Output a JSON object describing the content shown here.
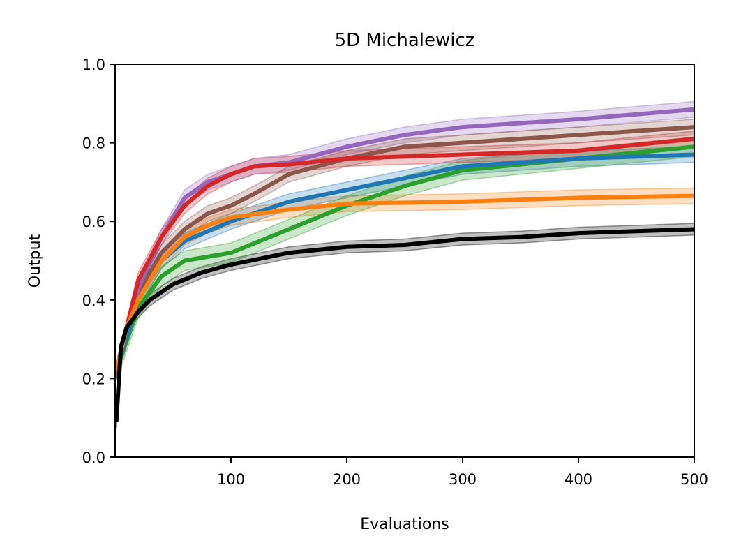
{
  "chart_data": {
    "type": "line",
    "title": "5D Michalewicz",
    "xlabel": "Evaluations",
    "ylabel": "Output",
    "xlim": [
      0,
      500
    ],
    "ylim": [
      0.0,
      1.0
    ],
    "xticks": [
      100,
      200,
      300,
      400,
      500
    ],
    "xtick_labels": [
      "100",
      "200",
      "300",
      "400",
      "500"
    ],
    "yticks": [
      0.0,
      0.2,
      0.4,
      0.6,
      0.8,
      1.0
    ],
    "ytick_labels": [
      "0.0",
      "0.2",
      "0.4",
      "0.6",
      "0.8",
      "1.0"
    ],
    "grid": false,
    "legend": "none",
    "series": [
      {
        "name": "black",
        "color": "#000000",
        "band": 0.015,
        "x": [
          1,
          5,
          10,
          20,
          30,
          50,
          75,
          100,
          150,
          200,
          250,
          300,
          350,
          400,
          450,
          500
        ],
        "y": [
          0.09,
          0.28,
          0.33,
          0.37,
          0.4,
          0.44,
          0.47,
          0.49,
          0.52,
          0.535,
          0.54,
          0.555,
          0.56,
          0.57,
          0.575,
          0.58
        ]
      },
      {
        "name": "orange",
        "color": "#ff7f0e",
        "band": 0.02,
        "x": [
          1,
          10,
          20,
          40,
          60,
          80,
          100,
          150,
          200,
          300,
          400,
          500
        ],
        "y": [
          0.22,
          0.33,
          0.4,
          0.5,
          0.56,
          0.59,
          0.61,
          0.63,
          0.645,
          0.65,
          0.66,
          0.665
        ]
      },
      {
        "name": "blue",
        "color": "#1f77b4",
        "band": 0.02,
        "x": [
          1,
          20,
          40,
          60,
          100,
          150,
          200,
          250,
          300,
          400,
          500
        ],
        "y": [
          0.22,
          0.4,
          0.5,
          0.55,
          0.6,
          0.65,
          0.68,
          0.71,
          0.74,
          0.76,
          0.77
        ]
      },
      {
        "name": "green",
        "color": "#2ca02c",
        "band": 0.025,
        "x": [
          1,
          20,
          40,
          60,
          100,
          150,
          200,
          250,
          300,
          400,
          500
        ],
        "y": [
          0.22,
          0.38,
          0.46,
          0.5,
          0.52,
          0.58,
          0.64,
          0.69,
          0.73,
          0.76,
          0.79
        ]
      },
      {
        "name": "red",
        "color": "#d62728",
        "band": 0.02,
        "x": [
          1,
          20,
          40,
          60,
          80,
          100,
          120,
          150,
          200,
          300,
          400,
          500
        ],
        "y": [
          0.22,
          0.45,
          0.56,
          0.64,
          0.69,
          0.72,
          0.74,
          0.745,
          0.76,
          0.77,
          0.78,
          0.81
        ]
      },
      {
        "name": "purple",
        "color": "#9467bd",
        "band": 0.02,
        "x": [
          1,
          20,
          40,
          60,
          80,
          100,
          120,
          150,
          200,
          250,
          300,
          400,
          500
        ],
        "y": [
          0.22,
          0.43,
          0.56,
          0.66,
          0.7,
          0.72,
          0.74,
          0.75,
          0.79,
          0.82,
          0.84,
          0.86,
          0.885
        ]
      },
      {
        "name": "brown",
        "color": "#8c564b",
        "band": 0.02,
        "x": [
          1,
          20,
          40,
          60,
          80,
          100,
          120,
          150,
          200,
          250,
          300,
          400,
          500
        ],
        "y": [
          0.22,
          0.42,
          0.52,
          0.58,
          0.62,
          0.64,
          0.67,
          0.72,
          0.76,
          0.79,
          0.8,
          0.82,
          0.84
        ]
      }
    ]
  }
}
